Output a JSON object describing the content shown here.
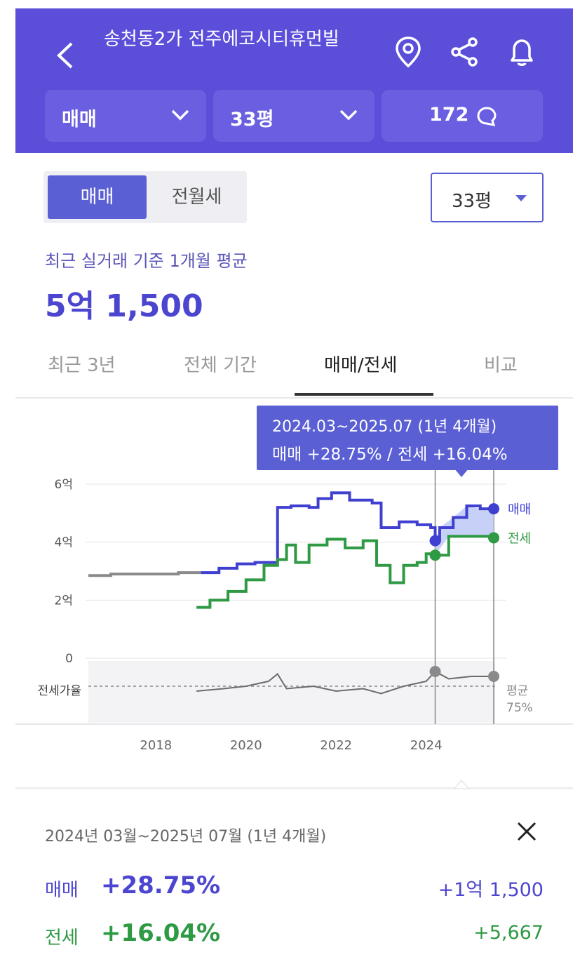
{
  "header": {
    "title": "송천동2가 전주에코시티휴먼빌",
    "selectors": [
      {
        "label": "매매"
      },
      {
        "label": "33평"
      },
      {
        "label": "172"
      }
    ]
  },
  "controls": {
    "segment": {
      "active": "매매",
      "inactive": "전월세"
    },
    "area_select": "33평"
  },
  "summary": {
    "subtitle": "최근 실거래 기준 1개월 평균",
    "price": "5억 1,500"
  },
  "tabs": [
    {
      "label": "최근 3년",
      "active": false
    },
    {
      "label": "전체 기간",
      "active": false
    },
    {
      "label": "매매/전세",
      "active": true
    },
    {
      "label": "비교",
      "active": false
    }
  ],
  "tooltip": {
    "period": "2024.03~2025.07 (1년 4개월)",
    "values": "매매 +28.75%  /  전세 +16.04%"
  },
  "chart_data": {
    "type": "line",
    "y_tick_labels": [
      "6억",
      "4억",
      "2억",
      "0"
    ],
    "x_tick_labels": [
      "2018",
      "2020",
      "2022",
      "2024"
    ],
    "ylim": [
      0,
      6
    ],
    "y_unit": "억",
    "series": [
      {
        "name": "매매",
        "color": "#3f3fd0",
        "points": [
          [
            2016.5,
            2.85
          ],
          [
            2017,
            2.9
          ],
          [
            2017.5,
            2.9
          ],
          [
            2018,
            2.9
          ],
          [
            2018.5,
            2.95
          ],
          [
            2019,
            2.95
          ],
          [
            2019.4,
            3.1
          ],
          [
            2019.8,
            3.25
          ],
          [
            2020.2,
            3.3
          ],
          [
            2020.6,
            3.3
          ],
          [
            2020.7,
            5.2
          ],
          [
            2021,
            5.25
          ],
          [
            2021.4,
            5.2
          ],
          [
            2021.6,
            5.5
          ],
          [
            2021.9,
            5.7
          ],
          [
            2022.3,
            5.45
          ],
          [
            2022.8,
            5.35
          ],
          [
            2023,
            4.5
          ],
          [
            2023.4,
            4.7
          ],
          [
            2023.8,
            4.6
          ],
          [
            2024.1,
            4.5
          ],
          [
            2024.2,
            4.05
          ],
          [
            2024.3,
            4.5
          ],
          [
            2024.6,
            4.85
          ],
          [
            2024.9,
            5.25
          ],
          [
            2025.2,
            5.15
          ],
          [
            2025.5,
            5.15
          ]
        ],
        "end_label": "매매"
      },
      {
        "name": "전세",
        "color": "#2f9a44",
        "points": [
          [
            2018.9,
            1.75
          ],
          [
            2019.2,
            2.0
          ],
          [
            2019.6,
            2.3
          ],
          [
            2020,
            2.7
          ],
          [
            2020.4,
            3.2
          ],
          [
            2020.7,
            3.4
          ],
          [
            2020.9,
            3.9
          ],
          [
            2021.1,
            3.3
          ],
          [
            2021.4,
            3.9
          ],
          [
            2021.8,
            4.1
          ],
          [
            2022.2,
            3.8
          ],
          [
            2022.6,
            4.05
          ],
          [
            2022.9,
            3.2
          ],
          [
            2023.2,
            2.6
          ],
          [
            2023.5,
            3.2
          ],
          [
            2023.8,
            3.3
          ],
          [
            2024,
            3.6
          ],
          [
            2024.2,
            3.55
          ],
          [
            2024.5,
            4.2
          ],
          [
            2024.9,
            4.2
          ],
          [
            2025.5,
            4.15
          ]
        ],
        "end_label": "전세"
      }
    ],
    "ratio_series": {
      "label": "전세가율",
      "avg_label": "평균",
      "avg_value": "75%",
      "points": [
        [
          2018.9,
          0.5
        ],
        [
          2019.5,
          0.55
        ],
        [
          2020,
          0.6
        ],
        [
          2020.5,
          0.7
        ],
        [
          2020.7,
          0.85
        ],
        [
          2020.9,
          0.55
        ],
        [
          2021.5,
          0.6
        ],
        [
          2022,
          0.5
        ],
        [
          2022.6,
          0.55
        ],
        [
          2023,
          0.45
        ],
        [
          2023.5,
          0.6
        ],
        [
          2024,
          0.7
        ],
        [
          2024.2,
          0.9
        ],
        [
          2024.5,
          0.75
        ],
        [
          2025,
          0.8
        ],
        [
          2025.5,
          0.8
        ]
      ]
    },
    "highlight_range": [
      "2024.03",
      "2025.07"
    ]
  },
  "detail_panel": {
    "period": "2024년 03월~2025년 07월 (1년 4개월)",
    "rows": [
      {
        "label": "매매",
        "pct": "+28.75%",
        "amount": "+1억 1,500"
      },
      {
        "label": "전세",
        "pct": "+16.04%",
        "amount": "+5,667"
      }
    ]
  }
}
